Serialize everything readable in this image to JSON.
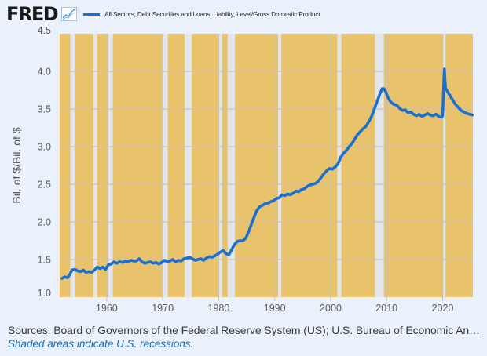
{
  "header": {
    "logo_text": "FRED",
    "logo_icon": "line-chart-icon",
    "legend_label": "All Sectors; Debt Securities and Loans; Liability, Level/Gross Domestic Product"
  },
  "footer": {
    "sources": "Sources: Board of Governors of the Federal Reserve System (US); U.S. Bureau of Economic An…",
    "note": "Shaded areas indicate U.S. recessions."
  },
  "colors": {
    "page_background": "#eaf1fa",
    "plot_background": "#e8c36c",
    "recession_band": "#e2e6ec",
    "gridline": "#cbc2ad",
    "series_line": "#1a6fd0"
  },
  "chart_data": {
    "type": "line",
    "title": "",
    "xlabel": "",
    "ylabel": "Bil. of $/Bil. of $",
    "xlim": [
      1951.6,
      2025.4
    ],
    "ylim": [
      1.0,
      4.5
    ],
    "grid": true,
    "legend_position": "top",
    "x_ticks": [
      1960,
      1970,
      1980,
      1990,
      2000,
      2010,
      2020
    ],
    "x_tick_labels": [
      "1960",
      "1970",
      "1980",
      "1990",
      "2000",
      "2010",
      "2020"
    ],
    "y_ticks": [
      1.0,
      1.5,
      2.0,
      2.5,
      3.0,
      3.5,
      4.0,
      4.5
    ],
    "y_tick_labels": [
      "1.0",
      "1.5",
      "2.0",
      "2.5",
      "3.0",
      "3.5",
      "4.0",
      "4.5"
    ],
    "recessions": [
      [
        1953.5,
        1954.3
      ],
      [
        1957.6,
        1958.3
      ],
      [
        1960.3,
        1961.1
      ],
      [
        1969.9,
        1970.9
      ],
      [
        1973.9,
        1975.2
      ],
      [
        1980.0,
        1980.6
      ],
      [
        1981.6,
        1982.9
      ],
      [
        1990.6,
        1991.2
      ],
      [
        2001.2,
        2001.9
      ],
      [
        2007.9,
        2009.5
      ],
      [
        2020.1,
        2020.4
      ]
    ],
    "series": [
      {
        "name": "All Sectors; Debt Securities and Loans; Liability, Level/Gross Domestic Product",
        "x": [
          1952.0,
          1952.5,
          1953.0,
          1953.4,
          1953.8,
          1954.3,
          1954.8,
          1955.3,
          1955.8,
          1956.3,
          1956.8,
          1957.3,
          1957.8,
          1958.3,
          1958.8,
          1959.3,
          1959.8,
          1960.3,
          1960.8,
          1961.3,
          1961.8,
          1962.3,
          1962.8,
          1963.3,
          1963.8,
          1964.3,
          1964.8,
          1965.3,
          1965.8,
          1966.3,
          1966.8,
          1967.3,
          1967.8,
          1968.3,
          1968.8,
          1969.3,
          1969.8,
          1970.3,
          1970.8,
          1971.3,
          1971.8,
          1972.3,
          1972.8,
          1973.3,
          1973.8,
          1974.3,
          1974.8,
          1975.3,
          1975.8,
          1976.3,
          1976.8,
          1977.3,
          1977.8,
          1978.3,
          1978.8,
          1979.3,
          1979.8,
          1980.3,
          1980.8,
          1981.3,
          1981.8,
          1982.3,
          1982.8,
          1983.3,
          1983.8,
          1984.3,
          1984.8,
          1985.3,
          1985.8,
          1986.3,
          1986.8,
          1987.3,
          1987.8,
          1988.3,
          1988.8,
          1989.3,
          1989.8,
          1990.3,
          1990.8,
          1991.3,
          1991.8,
          1992.3,
          1992.8,
          1993.3,
          1993.8,
          1994.3,
          1994.8,
          1995.3,
          1995.8,
          1996.3,
          1996.8,
          1997.3,
          1997.8,
          1998.3,
          1998.8,
          1999.3,
          1999.8,
          2000.3,
          2000.8,
          2001.3,
          2001.8,
          2002.3,
          2002.8,
          2003.3,
          2003.8,
          2004.3,
          2004.8,
          2005.3,
          2005.8,
          2006.3,
          2006.8,
          2007.3,
          2007.8,
          2008.3,
          2008.8,
          2009.2,
          2009.5,
          2009.9,
          2010.3,
          2010.8,
          2011.3,
          2011.8,
          2012.3,
          2012.8,
          2013.3,
          2013.8,
          2014.3,
          2014.8,
          2015.3,
          2015.8,
          2016.3,
          2016.8,
          2017.3,
          2017.8,
          2018.3,
          2018.8,
          2019.3,
          2019.8,
          2020.0,
          2020.3,
          2020.5,
          2020.8,
          2021.3,
          2021.8,
          2022.3,
          2022.8,
          2023.3,
          2023.8,
          2024.3,
          2024.8,
          2025.3
        ],
        "y": [
          1.25,
          1.27,
          1.26,
          1.3,
          1.36,
          1.37,
          1.35,
          1.34,
          1.36,
          1.33,
          1.34,
          1.33,
          1.36,
          1.4,
          1.38,
          1.4,
          1.37,
          1.43,
          1.44,
          1.47,
          1.45,
          1.47,
          1.46,
          1.48,
          1.47,
          1.49,
          1.48,
          1.48,
          1.51,
          1.47,
          1.45,
          1.46,
          1.47,
          1.45,
          1.46,
          1.44,
          1.46,
          1.49,
          1.47,
          1.48,
          1.5,
          1.47,
          1.49,
          1.48,
          1.51,
          1.52,
          1.53,
          1.51,
          1.49,
          1.5,
          1.51,
          1.49,
          1.52,
          1.54,
          1.53,
          1.55,
          1.57,
          1.6,
          1.62,
          1.58,
          1.56,
          1.63,
          1.7,
          1.74,
          1.75,
          1.75,
          1.78,
          1.86,
          1.96,
          2.06,
          2.15,
          2.2,
          2.22,
          2.24,
          2.25,
          2.27,
          2.28,
          2.31,
          2.32,
          2.36,
          2.35,
          2.37,
          2.36,
          2.38,
          2.41,
          2.4,
          2.43,
          2.44,
          2.47,
          2.49,
          2.5,
          2.51,
          2.54,
          2.59,
          2.64,
          2.68,
          2.71,
          2.7,
          2.73,
          2.77,
          2.86,
          2.91,
          2.95,
          3.0,
          3.04,
          3.1,
          3.16,
          3.2,
          3.24,
          3.27,
          3.33,
          3.4,
          3.5,
          3.6,
          3.7,
          3.77,
          3.77,
          3.72,
          3.64,
          3.59,
          3.56,
          3.55,
          3.51,
          3.48,
          3.49,
          3.45,
          3.46,
          3.43,
          3.41,
          3.43,
          3.4,
          3.42,
          3.44,
          3.42,
          3.41,
          3.43,
          3.4,
          3.39,
          3.41,
          4.03,
          3.78,
          3.74,
          3.68,
          3.62,
          3.56,
          3.52,
          3.48,
          3.46,
          3.44,
          3.43,
          3.42
        ]
      }
    ]
  }
}
